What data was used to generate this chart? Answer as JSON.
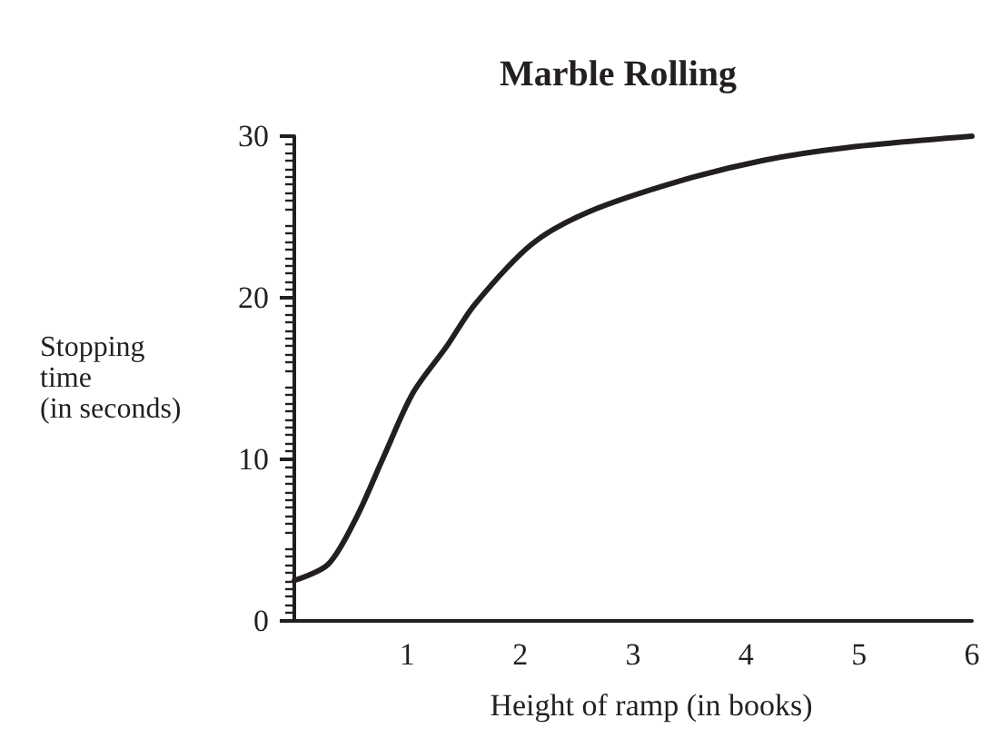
{
  "chart_data": {
    "type": "line",
    "title": "Marble Rolling",
    "xlabel": "Height of ramp (in books)",
    "ylabel": "Stopping time (in seconds)",
    "x": [
      0,
      0.3,
      0.55,
      0.8,
      1.05,
      1.35,
      1.6,
      2.1,
      2.6,
      3.4,
      4.15,
      4.9,
      6
    ],
    "series": [
      {
        "color": "#231f20",
        "values": [
          2.5,
          3.5,
          6.4,
          10.3,
          14.1,
          17,
          19.6,
          23.3,
          25.3,
          27.2,
          28.5,
          29.3,
          30
        ]
      }
    ],
    "xlim": [
      0,
      6
    ],
    "xticks": [
      1,
      2,
      3,
      4,
      5,
      6
    ],
    "ylim": [
      0,
      30
    ],
    "yticks": [
      0,
      10,
      20,
      30
    ],
    "marker": "none",
    "line_style": "solid"
  }
}
